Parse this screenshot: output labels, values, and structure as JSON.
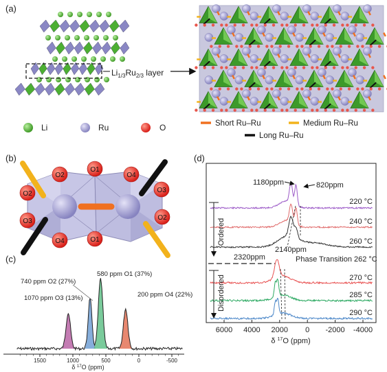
{
  "panels": {
    "a": {
      "label": "(a)",
      "layer_label_main": "Li",
      "layer_label_sub1": "1/3",
      "layer_label_mid": "Ru",
      "layer_label_sub2": "2/3",
      "layer_label_tail": " layer",
      "legend": {
        "li": "Li",
        "ru": "Ru",
        "o": "O",
        "short": "Short Ru–Ru",
        "medium": "Medium Ru–Ru",
        "long": "Long Ru–Ru"
      },
      "colors": {
        "li": "#4caf32",
        "ru": "#9b98cf",
        "o": "#e8312b",
        "short": "#f07020",
        "medium": "#f2b21c",
        "long": "#111111"
      }
    },
    "b": {
      "label": "(b)",
      "oxygen_labels": [
        "O2",
        "O1",
        "O4",
        "O2",
        "O3",
        "O3",
        "O1",
        "O2",
        "O4"
      ]
    },
    "c": {
      "label": "(c)",
      "peaks": [
        "1070 ppm O3 (13%)",
        "740 ppm O2 (27%)",
        "580 ppm O1 (37%)",
        "200 ppm O4 (22%)"
      ],
      "ticks": [
        "1500",
        "1000",
        "500",
        "0",
        "-500"
      ],
      "xlabel_pre": "δ ",
      "xlabel_sup": "17",
      "xlabel_post": "O (ppm)",
      "peak_colors": [
        "#b0509a",
        "#5e93cf",
        "#4dba7a",
        "#e06040"
      ]
    },
    "d": {
      "label": "(d)",
      "annotations": {
        "p1180": "1180ppm",
        "p820": "820ppm",
        "p2320": "2320ppm",
        "p2140": "2140ppm",
        "transition": "Phase Transition 262 °C"
      },
      "ordered": "Ordered",
      "disordered": "Disordered",
      "temps": [
        "220 °C",
        "240 °C",
        "260 °C",
        "270 °C",
        "285 °C",
        "290 °C"
      ],
      "ticks": [
        "6000",
        "4000",
        "2000",
        "0",
        "-2000",
        "-4000"
      ],
      "xlabel_pre": "δ ",
      "xlabel_sup": "17",
      "xlabel_post": "O (ppm)",
      "trace_colors": [
        "#9b59c7",
        "#e06a6a",
        "#333333",
        "#e85050",
        "#2aa860",
        "#4a86c8"
      ]
    }
  }
}
